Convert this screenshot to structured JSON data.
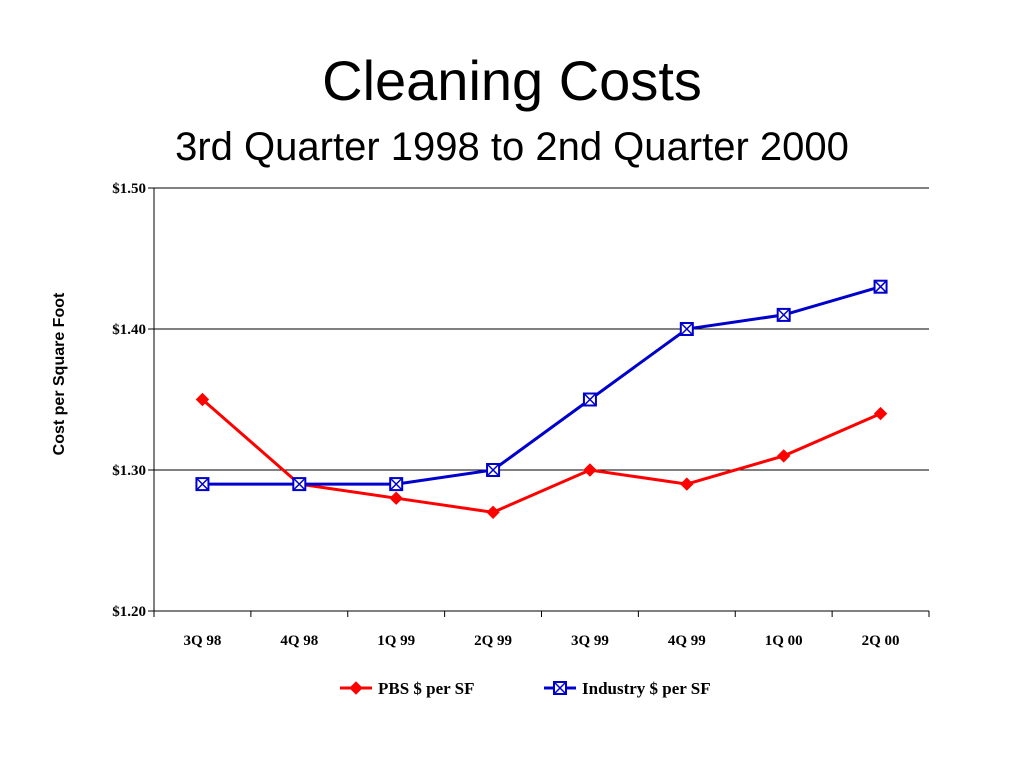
{
  "slide": {
    "title": "Cleaning Costs",
    "subtitle": "3rd Quarter 1998 to 2nd Quarter 2000"
  },
  "chart_data": {
    "type": "line",
    "title": "Cleaning Costs",
    "subtitle": "3rd Quarter 1998 to 2nd Quarter 2000",
    "xlabel": "",
    "ylabel": "Cost per Square Foot",
    "categories": [
      "3Q 98",
      "4Q 98",
      "1Q 99",
      "2Q 99",
      "3Q 99",
      "4Q 99",
      "1Q 00",
      "2Q 00"
    ],
    "ylim": [
      1.2,
      1.5
    ],
    "yticks": [
      1.2,
      1.3,
      1.4,
      1.5
    ],
    "ytick_labels": [
      "$1.20",
      "$1.30",
      "$1.40",
      "$1.50"
    ],
    "grid": "horizontal",
    "legend_position": "bottom",
    "series": [
      {
        "name": "PBS $ per SF",
        "color": "#ff0000",
        "marker": "diamond",
        "values": [
          1.35,
          1.29,
          1.28,
          1.27,
          1.3,
          1.29,
          1.31,
          1.34
        ]
      },
      {
        "name": "Industry $ per SF",
        "color": "#0000cc",
        "marker": "boxed-x",
        "values": [
          1.29,
          1.29,
          1.29,
          1.3,
          1.35,
          1.4,
          1.41,
          1.43
        ]
      }
    ]
  }
}
